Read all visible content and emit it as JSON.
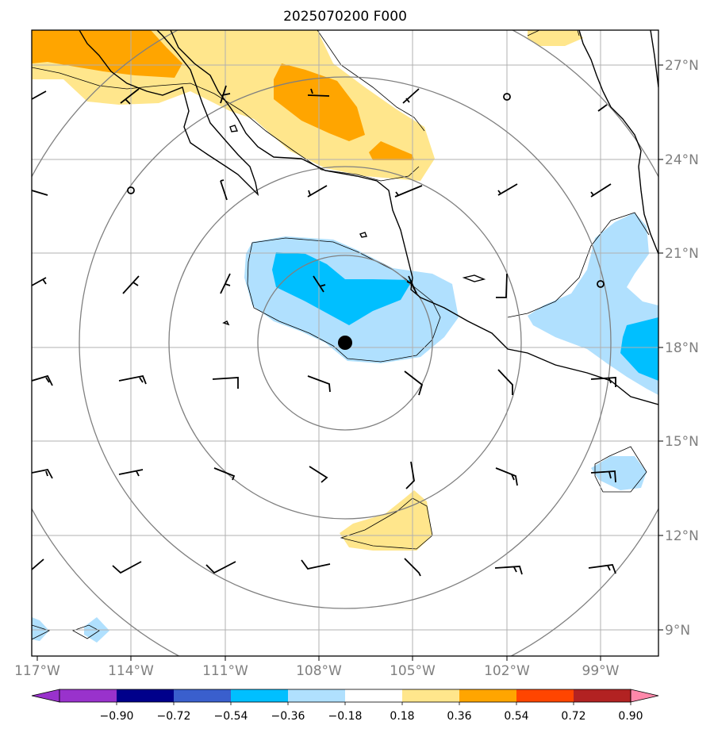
{
  "title": "2025070200 F000",
  "map": {
    "lon_range": [
      -117.2,
      -98.2
    ],
    "lat_range": [
      8.1,
      28.0
    ],
    "lon_labels": [
      "117°W",
      "114°W",
      "111°W",
      "108°W",
      "105°W",
      "102°W",
      "99°W"
    ],
    "lat_labels": [
      "27°N",
      "24°N",
      "21°N",
      "18°N",
      "15°N",
      "12°N",
      "9°N"
    ],
    "center_marker": {
      "lon": -107.0,
      "lat": 18.2,
      "color": "#000000"
    },
    "gridlines": true,
    "range_rings": "concentric circles around storm center"
  },
  "colorbar": {
    "tick_labels": [
      "−0.90",
      "−0.72",
      "−0.54",
      "−0.36",
      "−0.18",
      "0.18",
      "0.36",
      "0.54",
      "0.72",
      "0.90"
    ],
    "bins": [
      "#9932cc",
      "#00008b",
      "#3a5fcd",
      "#00bfff",
      "#b0e0fe",
      "#ffffff",
      "#ffe68c",
      "#ffa500",
      "#ff4500",
      "#b22222"
    ],
    "under_color": "#9932cc",
    "over_color": "#ff88aa"
  },
  "fill_colors": {
    "light_yellow": "#ffe68c",
    "orange": "#ffa500",
    "light_blue": "#b0e0fe",
    "deep_sky_blue": "#00bfff"
  }
}
